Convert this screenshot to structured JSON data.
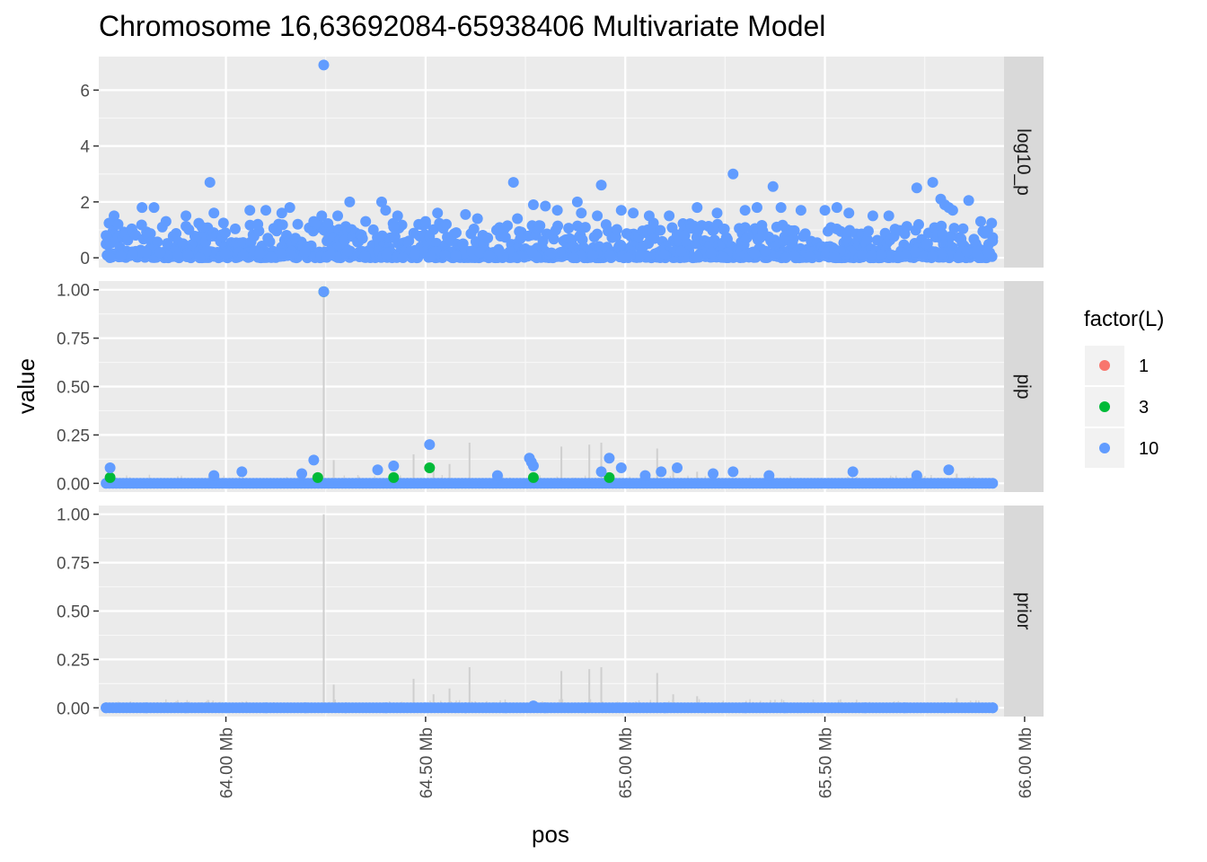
{
  "chart_data": {
    "type": "scatter",
    "title": "Chromosome 16,63692084-65938406 Multivariate Model",
    "xlabel": "pos",
    "ylabel": "value",
    "x_unit": "Mb",
    "xlim": [
      63.6817,
      65.9485
    ],
    "x_ticks": [
      64.0,
      64.5,
      65.0,
      65.5,
      66.0
    ],
    "x_tick_labels": [
      "64.00 Mb",
      "64.50 Mb",
      "65.00 Mb",
      "65.50 Mb",
      "66.00 Mb"
    ],
    "grid": true,
    "background": "#ebebeb",
    "legend": {
      "title": "factor(L)",
      "position": "right",
      "entries": [
        {
          "label": "1",
          "color": "#f8766d"
        },
        {
          "label": "3",
          "color": "#00ba38"
        },
        {
          "label": "10",
          "color": "#619cff"
        }
      ]
    },
    "facets": [
      {
        "strip": "log10_p",
        "ylim": [
          -0.35,
          7.2
        ],
        "y_ticks": [
          0,
          2,
          4,
          6
        ],
        "y_tick_labels": [
          "0",
          "2",
          "4",
          "6"
        ],
        "series": [
          {
            "name": "10",
            "color": "#619cff",
            "x": [
              63.7,
              63.72,
              63.73,
              63.79,
              63.82,
              63.85,
              63.9,
              63.94,
              63.96,
              63.97,
              64.06,
              64.08,
              64.1,
              64.14,
              64.16,
              64.18,
              64.22,
              64.24,
              64.245,
              64.28,
              64.31,
              64.35,
              64.39,
              64.4,
              64.42,
              64.43,
              64.5,
              64.53,
              64.6,
              64.63,
              64.72,
              64.73,
              64.77,
              64.8,
              64.83,
              64.88,
              64.89,
              64.93,
              64.94,
              64.99,
              65.02,
              65.06,
              65.11,
              65.18,
              65.23,
              65.27,
              65.3,
              65.33,
              65.37,
              65.39,
              65.44,
              65.5,
              65.53,
              65.56,
              65.62,
              65.66,
              65.73,
              65.77,
              65.79,
              65.8,
              65.81,
              65.82,
              65.86,
              65.89,
              65.92
            ],
            "y": [
              0.8,
              1.5,
              1.2,
              1.8,
              1.8,
              1.3,
              1.5,
              1.1,
              2.7,
              1.6,
              1.7,
              1.2,
              1.7,
              1.6,
              1.8,
              1.2,
              1.3,
              1.5,
              6.9,
              1.5,
              2.0,
              1.3,
              2.0,
              1.7,
              1.1,
              1.5,
              1.3,
              1.6,
              1.55,
              1.4,
              2.7,
              1.4,
              1.9,
              1.85,
              1.7,
              2.0,
              1.6,
              1.5,
              2.6,
              1.7,
              1.6,
              1.5,
              1.5,
              1.8,
              1.6,
              3.0,
              1.7,
              1.8,
              2.55,
              1.8,
              1.7,
              1.7,
              1.8,
              1.6,
              1.5,
              1.5,
              2.5,
              2.7,
              2.1,
              1.9,
              1.8,
              1.7,
              2.05,
              1.3,
              0.6
            ]
          }
        ]
      },
      {
        "strip": "pip",
        "ylim": [
          -0.045,
          1.045
        ],
        "y_ticks": [
          0,
          0.25,
          0.5,
          0.75,
          1.0
        ],
        "y_tick_labels": [
          "0.00",
          "0.25",
          "0.50",
          "0.75",
          "1.00"
        ],
        "series": [
          {
            "name": "3",
            "color": "#00ba38",
            "x": [
              63.71,
              64.23,
              64.245,
              64.42,
              64.51,
              64.77,
              64.96
            ],
            "y": [
              0.03,
              0.03,
              0.99,
              0.03,
              0.08,
              0.03,
              0.03
            ]
          },
          {
            "name": "10",
            "color": "#619cff",
            "x": [
              63.71,
              63.97,
              64.04,
              64.19,
              64.22,
              64.245,
              64.38,
              64.42,
              64.51,
              64.68,
              64.76,
              64.765,
              64.77,
              64.94,
              64.96,
              64.99,
              65.05,
              65.09,
              65.13,
              65.22,
              65.27,
              65.36,
              65.57,
              65.73,
              65.81
            ],
            "y": [
              0.08,
              0.04,
              0.06,
              0.05,
              0.12,
              0.99,
              0.07,
              0.09,
              0.2,
              0.04,
              0.13,
              0.11,
              0.09,
              0.06,
              0.13,
              0.08,
              0.04,
              0.06,
              0.08,
              0.05,
              0.06,
              0.04,
              0.06,
              0.04,
              0.07
            ]
          }
        ]
      },
      {
        "strip": "prior",
        "ylim": [
          -0.045,
          1.045
        ],
        "y_ticks": [
          0,
          0.25,
          0.5,
          0.75,
          1.0
        ],
        "y_tick_labels": [
          "0.00",
          "0.25",
          "0.50",
          "0.75",
          "1.00"
        ],
        "series": [
          {
            "name": "10",
            "color": "#619cff",
            "x": [
              63.7,
              63.8,
              63.9,
              64.0,
              64.1,
              64.2,
              64.3,
              64.4,
              64.5,
              64.6,
              64.7,
              64.77,
              64.8,
              64.9,
              65.0,
              65.1,
              65.2,
              65.3,
              65.4,
              65.5,
              65.6,
              65.7,
              65.8,
              65.92
            ],
            "y": [
              0,
              0,
              0,
              0,
              0,
              0,
              0,
              0,
              0,
              0,
              0,
              0.01,
              0,
              0,
              0,
              0,
              0,
              0,
              0,
              0,
              0,
              0,
              0,
              0
            ]
          }
        ],
        "prior_bars": {
          "x": [
            64.245,
            64.27,
            64.47,
            64.52,
            64.56,
            64.61,
            64.84,
            64.91,
            64.94,
            65.08,
            65.12,
            65.18,
            65.83
          ],
          "y": [
            1.0,
            0.12,
            0.15,
            0.07,
            0.1,
            0.21,
            0.19,
            0.2,
            0.21,
            0.18,
            0.07,
            0.06,
            0.05
          ]
        }
      }
    ]
  }
}
